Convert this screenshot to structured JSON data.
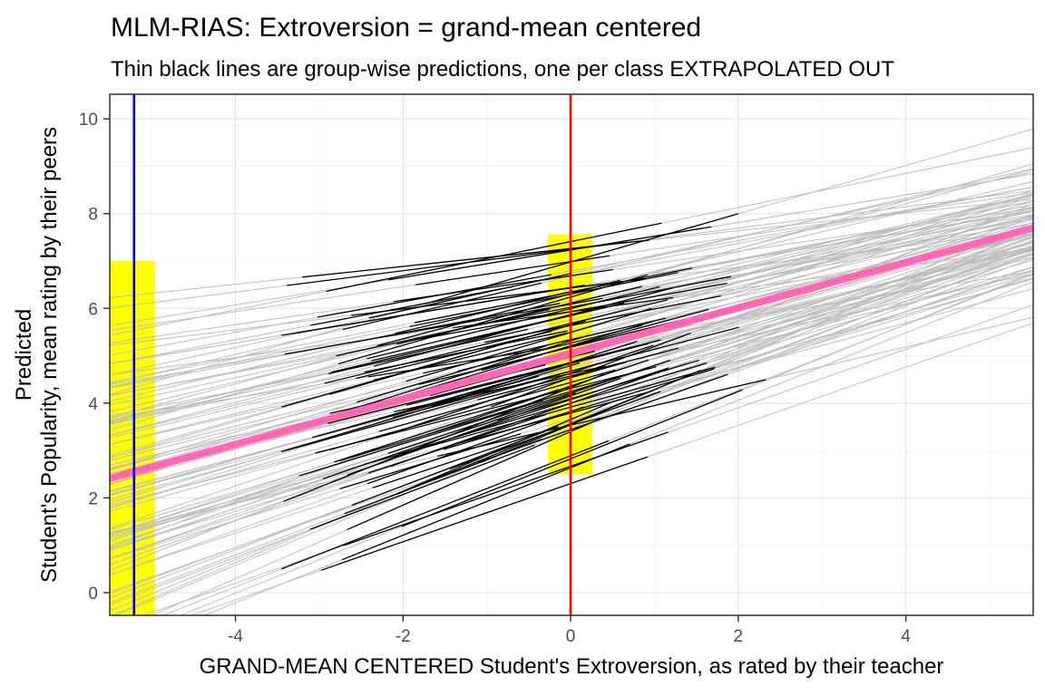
{
  "title": "MLM-RIAS: Extroversion = grand-mean centered",
  "subtitle": "Thin black lines are group-wise predictions, one per class EXTRAPOLATED OUT",
  "axes": {
    "x_label": "GRAND-MEAN CENTERED Student's Extroversion, as rated by their teacher",
    "y_label_line1": "Predicted",
    "y_label_line2": "Student's Popularity, mean rating by their peers",
    "x_ticks": [
      -4,
      -2,
      0,
      2,
      4
    ],
    "y_ticks": [
      0,
      2,
      4,
      6,
      8,
      10
    ],
    "x_minor_ticks": [
      -5,
      -3,
      -1,
      1,
      3,
      5
    ],
    "y_minor_ticks": [
      1,
      3,
      5,
      7,
      9
    ],
    "x_range": [
      -5.5,
      5.52
    ],
    "y_range": [
      -0.48,
      10.52
    ]
  },
  "chart_data": {
    "type": "line",
    "title": "MLM-RIAS: Extroversion = grand-mean centered",
    "subtitle": "Thin black lines are group-wise predictions, one per class EXTRAPOLATED OUT",
    "xlabel": "GRAND-MEAN CENTERED Student's Extroversion, as rated by their teacher",
    "ylabel": "Predicted Student's Popularity, mean rating by their peers",
    "xlim": [
      -5.5,
      5.52
    ],
    "ylim": [
      -0.48,
      10.52
    ],
    "grid": {
      "major_color": "#e7e7e7",
      "minor_color": "#f3f3f3",
      "background": "#ffffff",
      "panel_border": "#2f2f2f"
    },
    "overall_fixed_effect_line": {
      "name": "overall prediction (thick pink)",
      "intercept": 5.05,
      "slope": 0.48,
      "y_at_x_left": 2.41,
      "y_at_x0": 5.05,
      "y_at_x_right": 7.7,
      "color": "#ff69b4",
      "width": 8
    },
    "reference_lines": [
      {
        "name": "blue vertical line",
        "axis": "x",
        "value": -5.21,
        "color": "#0000ee",
        "width": 2.6
      },
      {
        "name": "red vertical line",
        "axis": "x",
        "value": 0,
        "color": "#ff0000",
        "width": 2.6
      }
    ],
    "highlight_bands": [
      {
        "name": "left yellow band",
        "x": [
          -5.6,
          -4.96
        ],
        "y": [
          -0.6,
          7.0
        ],
        "color": "#ffff00"
      },
      {
        "name": "center yellow band",
        "x": [
          -0.27,
          0.26
        ],
        "y": [
          2.5,
          7.56
        ],
        "color": "#ffff00"
      }
    ],
    "group_lines": {
      "description": "one thin prediction line per class; black inside the class's observed extroversion range, gray where extrapolated",
      "count": 100,
      "seed": 11,
      "intercept_mean": 5.05,
      "intercept_sd": 1.08,
      "slope_mean": 0.48,
      "slope_sd": 0.115,
      "intercept_slope_corr": -0.8,
      "intercept_clamp": [
        2.2,
        7.5
      ],
      "slope_clamp": [
        0.12,
        0.95
      ],
      "black_span_center_range": [
        -1.9,
        0.45
      ],
      "black_span_halfwidth_range": [
        1.05,
        2.1
      ],
      "black_x_clamp": [
        -3.45,
        3.0
      ],
      "gray_color": "#bdbdbd",
      "black_color": "#000000",
      "gray_width": 1,
      "black_width": 1.3
    }
  }
}
